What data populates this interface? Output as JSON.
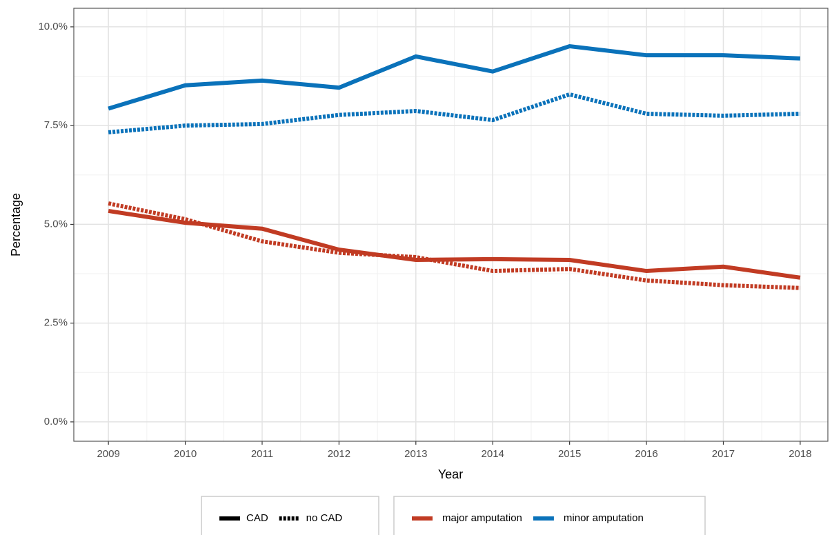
{
  "chart_data": {
    "type": "line",
    "x_label": "Year",
    "y_label": "Percentage",
    "x": [
      2009,
      2010,
      2011,
      2012,
      2013,
      2014,
      2015,
      2016,
      2017,
      2018
    ],
    "linetypes": [
      "CAD",
      "no CAD"
    ],
    "linestyles": [
      "solid",
      "dotted"
    ],
    "series": [
      {
        "name": "major amputation",
        "color": "#c13b23",
        "lines": [
          {
            "values": [
              5.34,
              5.04,
              4.89,
              4.36,
              4.1,
              4.12,
              4.1,
              3.82,
              3.93,
              3.65
            ]
          },
          {
            "values": [
              5.53,
              5.13,
              4.57,
              4.28,
              4.17,
              3.82,
              3.87,
              3.58,
              3.46,
              3.39
            ]
          }
        ]
      },
      {
        "name": "minor amputation",
        "color": "#0a72ba",
        "lines": [
          {
            "values": [
              7.93,
              8.52,
              8.64,
              8.46,
              9.25,
              8.87,
              9.51,
              9.28,
              9.28,
              9.2
            ]
          },
          {
            "values": [
              7.33,
              7.5,
              7.54,
              7.77,
              7.87,
              7.64,
              8.29,
              7.8,
              7.75,
              7.8
            ]
          }
        ]
      }
    ],
    "xlim": [
      2008.55,
      2018.36
    ],
    "xticks": [
      2009,
      2010,
      2011,
      2012,
      2013,
      2014,
      2015,
      2016,
      2017,
      2018
    ],
    "ylim": [
      -0.49,
      10.47
    ],
    "yticks": [
      {
        "value": 0,
        "label": "0.0%"
      },
      {
        "value": 2.5,
        "label": "2.5%"
      },
      {
        "value": 5,
        "label": "5.0%"
      },
      {
        "value": 7.5,
        "label": "7.5%"
      },
      {
        "value": 10,
        "label": "10.0%"
      }
    ],
    "grid": true,
    "legend": "bottom"
  }
}
